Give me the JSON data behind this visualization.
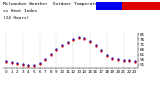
{
  "title_line1": "Milwaukee Weather  Outdoor Temperature",
  "title_line2": "vs Heat Index",
  "title_line3": "(24 Hours)",
  "hours": [
    0,
    1,
    2,
    3,
    4,
    5,
    6,
    7,
    8,
    9,
    10,
    11,
    12,
    13,
    14,
    15,
    16,
    17,
    18,
    19,
    20,
    21,
    22,
    23
  ],
  "temp": [
    55,
    54,
    53,
    52,
    51,
    51,
    53,
    57,
    62,
    66,
    70,
    73,
    76,
    78,
    77,
    74,
    70,
    65,
    61,
    58,
    57,
    56,
    56,
    55
  ],
  "heat_index": [
    54,
    53,
    52,
    51,
    50,
    50,
    52,
    56,
    61,
    65,
    69,
    72,
    75,
    77,
    76,
    73,
    69,
    64,
    60,
    57,
    56,
    55,
    55,
    54
  ],
  "temp_color": "#0000dd",
  "heat_color": "#cc0000",
  "ylim": [
    48,
    82
  ],
  "yticks": [
    51,
    56,
    61,
    66,
    71,
    76,
    81
  ],
  "ytick_labels": [
    "51",
    "56",
    "61",
    "66",
    "71",
    "76",
    "81"
  ],
  "background": "#ffffff",
  "plot_bg": "#ffffff",
  "title_fontsize": 3.2,
  "tick_fontsize": 3.0,
  "grid_color": "#bbbbbb",
  "legend_box_blue": "#0000ee",
  "legend_box_red": "#dd0000",
  "vgrid_positions": [
    0,
    3,
    6,
    9,
    12,
    15,
    18,
    21
  ]
}
